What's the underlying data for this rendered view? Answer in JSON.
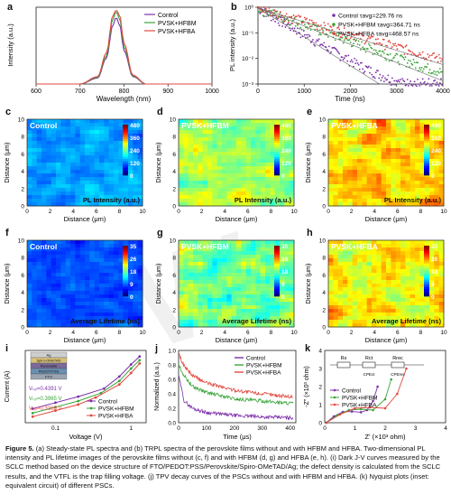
{
  "panels": {
    "a": {
      "label": "a",
      "xlabel": "Wavelength (nm)",
      "ylabel": "Intensity (a.u.)",
      "legend": [
        "Control",
        "PVSK+HFBM",
        "PVSK+HFBA"
      ],
      "xticks": [
        "600",
        "700",
        "800",
        "900",
        "1000"
      ]
    },
    "b": {
      "label": "b",
      "xlabel": "Time (ns)",
      "ylabel": "PL intensity (a.u.)",
      "legend": [
        "Control τavg=229.76 ns",
        "PVSK+HFBM τavg=364.71 ns",
        "PVSK+HFBA τavg=468.57 ns"
      ],
      "xticks": [
        "0",
        "1000",
        "2000",
        "3000",
        "4000"
      ],
      "yticks": [
        "10⁻³",
        "10⁻²",
        "10⁻¹",
        "10⁰"
      ]
    },
    "c": {
      "label": "c",
      "title": "Control",
      "caption": "PL Intensity (a.u.)",
      "cb": [
        "480",
        "360",
        "240",
        "120",
        "0"
      ]
    },
    "d": {
      "label": "d",
      "title": "PVSK+HFBM",
      "caption": "PL Intensity (a.u.)",
      "cb": [
        "480",
        "360",
        "240",
        "120",
        "0"
      ]
    },
    "e": {
      "label": "e",
      "title": "PVSK+HFBA",
      "caption": "PL Intensity (a.u.)",
      "cb": [
        "480",
        "360",
        "240",
        "120",
        "0"
      ]
    },
    "f": {
      "label": "f",
      "title": "Control",
      "caption": "Average Lifetime (ns)",
      "cb": [
        "35",
        "26",
        "18",
        "9",
        "0"
      ]
    },
    "g": {
      "label": "g",
      "title": "PVSK+HFBM",
      "caption": "Average Lifetime (ns)",
      "cb": [
        "35",
        "26",
        "18",
        "9",
        "0"
      ]
    },
    "h": {
      "label": "h",
      "title": "PVSK+HFBA",
      "caption": "Average Lifetime (ns)",
      "cb": [
        "35",
        "26",
        "18",
        "9",
        "0"
      ]
    },
    "i": {
      "label": "i",
      "xlabel": "Voltage (V)",
      "ylabel": "Current (A)",
      "legend": [
        "Control",
        "PVSK+HFBM",
        "PVSK+HFBA"
      ],
      "vtfl": [
        "Vₜₒₗ=0.4391 V",
        "Vₜₒₗ=0.3965 V",
        "Vₜₒₗ=0.3369 V"
      ],
      "stack": [
        "Ag",
        "Spiro-OMeTAD",
        "Perovskite",
        "PEDOT:PSS",
        "FTO"
      ],
      "xticks": [
        "0.1",
        "1"
      ]
    },
    "j": {
      "label": "j",
      "xlabel": "Time (μs)",
      "ylabel": "Normalized (a.u.)",
      "legend": [
        "Control",
        "PVSK+HFBM",
        "PVSK+HFBA"
      ],
      "xticks": [
        "0",
        "100",
        "200",
        "300",
        "400"
      ],
      "yticks": [
        "0.0",
        "0.2",
        "0.4",
        "0.6",
        "0.8",
        "1.0"
      ]
    },
    "k": {
      "label": "k",
      "xlabel": "Z' (×10³ ohm)",
      "ylabel": "-Z\" (×10³ ohm)",
      "legend": [
        "Control",
        "PVSK+HFBM",
        "PVSK+HFBA"
      ],
      "xticks": [
        "0",
        "1",
        "2",
        "3",
        "4"
      ],
      "yticks": [
        "0",
        "1",
        "2",
        "3",
        "4"
      ],
      "circuit": [
        "Rs",
        "Rct",
        "Rrec",
        "CPEct",
        "CPErec"
      ]
    }
  },
  "map_axes": {
    "xlabel": "Distance (μm)",
    "ylabel": "Distance (μm)",
    "ticks": [
      "0",
      "2",
      "4",
      "6",
      "8",
      "10"
    ]
  },
  "colors": {
    "control": "#7b2fa8",
    "hfbm": "#3aa53a",
    "hfba": "#e0483f"
  },
  "chart_data": [
    {
      "type": "line",
      "title": "",
      "xlabel": "Wavelength (nm)",
      "ylabel": "Intensity (a.u.)",
      "xlim": [
        600,
        1000
      ],
      "series": [
        {
          "name": "Control",
          "x": [
            700,
            740,
            760,
            775,
            782,
            790,
            800,
            820,
            850
          ],
          "values": [
            0.0,
            0.08,
            0.35,
            0.8,
            0.9,
            0.8,
            0.45,
            0.1,
            0.0
          ]
        },
        {
          "name": "PVSK+HFBM",
          "x": [
            700,
            740,
            760,
            775,
            782,
            790,
            800,
            820,
            850
          ],
          "values": [
            0.0,
            0.09,
            0.38,
            0.88,
            0.98,
            0.88,
            0.5,
            0.11,
            0.0
          ]
        },
        {
          "name": "PVSK+HFBA",
          "x": [
            700,
            740,
            760,
            775,
            782,
            790,
            800,
            820,
            850
          ],
          "values": [
            0.0,
            0.1,
            0.42,
            0.93,
            1.0,
            0.93,
            0.55,
            0.12,
            0.0
          ]
        }
      ]
    },
    {
      "type": "scatter",
      "title": "",
      "xlabel": "Time (ns)",
      "ylabel": "PL intensity (a.u.)",
      "xlim": [
        0,
        4000
      ],
      "ylim": [
        0.001,
        1
      ],
      "yscale": "log",
      "series": [
        {
          "name": "Control τavg=229.76 ns",
          "x": [
            0,
            200,
            500,
            1000,
            1500,
            2000,
            2500
          ],
          "values": [
            1,
            0.1,
            0.03,
            0.008,
            0.003,
            0.0015,
            0.001
          ]
        },
        {
          "name": "PVSK+HFBM τavg=364.71 ns",
          "x": [
            0,
            200,
            500,
            1000,
            2000,
            3000,
            3500
          ],
          "values": [
            1,
            0.2,
            0.06,
            0.02,
            0.006,
            0.002,
            0.0012
          ]
        },
        {
          "name": "PVSK+HFBA τavg=468.57 ns",
          "x": [
            0,
            200,
            500,
            1000,
            2000,
            3000,
            4000
          ],
          "values": [
            1,
            0.3,
            0.1,
            0.035,
            0.012,
            0.005,
            0.002
          ]
        }
      ]
    },
    {
      "type": "line",
      "title": "",
      "xlabel": "Voltage (V)",
      "ylabel": "Current (A)",
      "xscale": "log",
      "yscale": "log",
      "series": [
        {
          "name": "Control",
          "x": [
            0.05,
            0.1,
            0.2,
            0.44,
            0.7,
            1.0,
            1.3
          ],
          "values": [
            5e-05,
            0.0001,
            0.0002,
            0.0005,
            0.002,
            0.008,
            0.02
          ]
        },
        {
          "name": "PVSK+HFBM",
          "x": [
            0.05,
            0.1,
            0.2,
            0.4,
            0.7,
            1.0,
            1.3
          ],
          "values": [
            3e-05,
            6e-05,
            0.00012,
            0.0003,
            0.0012,
            0.005,
            0.013
          ]
        },
        {
          "name": "PVSK+HFBA",
          "x": [
            0.05,
            0.1,
            0.2,
            0.34,
            0.7,
            1.0,
            1.3
          ],
          "values": [
            2e-05,
            4e-05,
            8e-05,
            0.00018,
            0.0008,
            0.003,
            0.009
          ]
        }
      ]
    },
    {
      "type": "line",
      "title": "",
      "xlabel": "Time (μs)",
      "ylabel": "Normalized (a.u.)",
      "xlim": [
        0,
        420
      ],
      "ylim": [
        0,
        1
      ],
      "series": [
        {
          "name": "Control",
          "x": [
            0,
            20,
            50,
            100,
            200,
            300,
            400
          ],
          "values": [
            0.65,
            0.3,
            0.2,
            0.14,
            0.1,
            0.08,
            0.07
          ]
        },
        {
          "name": "PVSK+HFBM",
          "x": [
            0,
            20,
            50,
            100,
            200,
            300,
            400
          ],
          "values": [
            0.8,
            0.65,
            0.5,
            0.42,
            0.33,
            0.3,
            0.27
          ]
        },
        {
          "name": "PVSK+HFBA",
          "x": [
            0,
            20,
            50,
            100,
            200,
            300,
            400
          ],
          "values": [
            0.95,
            0.78,
            0.65,
            0.55,
            0.45,
            0.4,
            0.36
          ]
        }
      ]
    },
    {
      "type": "scatter",
      "title": "",
      "xlabel": "Z' (×10³ ohm)",
      "ylabel": "-Z\" (×10³ ohm)",
      "xlim": [
        0,
        4
      ],
      "ylim": [
        0,
        4
      ],
      "series": [
        {
          "name": "Control",
          "x": [
            0.05,
            0.3,
            0.6,
            0.9,
            1.2,
            1.4,
            1.6,
            1.75
          ],
          "values": [
            0.0,
            0.35,
            0.6,
            0.62,
            0.58,
            0.7,
            1.2,
            2.0
          ]
        },
        {
          "name": "PVSK+HFBM",
          "x": [
            0.05,
            0.4,
            0.8,
            1.2,
            1.6,
            2.0,
            2.2
          ],
          "values": [
            0.0,
            0.4,
            0.7,
            0.75,
            0.7,
            1.3,
            2.4
          ]
        },
        {
          "name": "PVSK+HFBA",
          "x": [
            0.05,
            0.5,
            1.0,
            1.5,
            2.0,
            2.4,
            2.7
          ],
          "values": [
            0.0,
            0.45,
            0.8,
            0.85,
            0.8,
            1.6,
            3.0
          ]
        }
      ]
    }
  ],
  "caption": {
    "lead": "Figure 5.",
    "text": "(a) Steady-state PL spectra and (b) TRPL spectra of the perovskite films without and with HFBM and HFBA. Two-dimensional PL intensity and PL lifetime images of the perovskite films without (c, f) and with HFBM (d, g) and HFBA (e, h). (i) Dark J-V curves measured by the SCLC method based on the device structure of FTO/PEDOT:PSS/Perovskite/Spiro-OMeTAD/Ag; the defect density is calculated from the SCLC results, and the VTFL is the trap filling voltage. (j) TPV decay curves of the PSCs without and with HFBM and HFBA. (k) Nyquist plots (inset: equivalent circuit) of different PSCs."
  }
}
